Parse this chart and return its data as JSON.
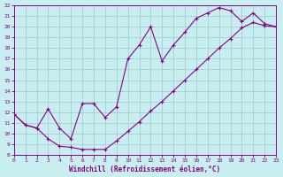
{
  "xlabel": "Windchill (Refroidissement éolien,°C)",
  "bg_color": "#c8eef0",
  "line_color": "#880088",
  "grid_color": "#9ac8d0",
  "xlim": [
    0,
    23
  ],
  "ylim": [
    8,
    22
  ],
  "xticks": [
    0,
    1,
    2,
    3,
    4,
    5,
    6,
    7,
    8,
    9,
    10,
    11,
    12,
    13,
    14,
    15,
    16,
    17,
    18,
    19,
    20,
    21,
    22,
    23
  ],
  "yticks": [
    8,
    9,
    10,
    11,
    12,
    13,
    14,
    15,
    16,
    17,
    18,
    19,
    20,
    21,
    22
  ],
  "line1_x": [
    0,
    1,
    2,
    3,
    4,
    5,
    6,
    7,
    8,
    9,
    10,
    11,
    12,
    13,
    14,
    15,
    16,
    17,
    18,
    19,
    20,
    21,
    22,
    23
  ],
  "line1_y": [
    11.8,
    10.8,
    10.5,
    9.5,
    8.8,
    8.7,
    8.5,
    8.5,
    8.5,
    9.3,
    10.2,
    11.1,
    12.1,
    13.0,
    14.0,
    15.0,
    16.0,
    17.0,
    18.0,
    18.9,
    19.9,
    20.4,
    20.1,
    20.0
  ],
  "line2_x": [
    0,
    1,
    2,
    3,
    4,
    5,
    6,
    7,
    8,
    9,
    10,
    11,
    12,
    13,
    14,
    15,
    16,
    17,
    18,
    19,
    20,
    21,
    22,
    23
  ],
  "line2_y": [
    11.8,
    10.8,
    10.5,
    12.3,
    10.5,
    9.5,
    12.8,
    12.8,
    11.5,
    12.5,
    17.0,
    18.3,
    20.0,
    16.8,
    18.3,
    19.5,
    20.8,
    21.3,
    21.8,
    21.5,
    20.5,
    21.3,
    20.3,
    20.0
  ]
}
